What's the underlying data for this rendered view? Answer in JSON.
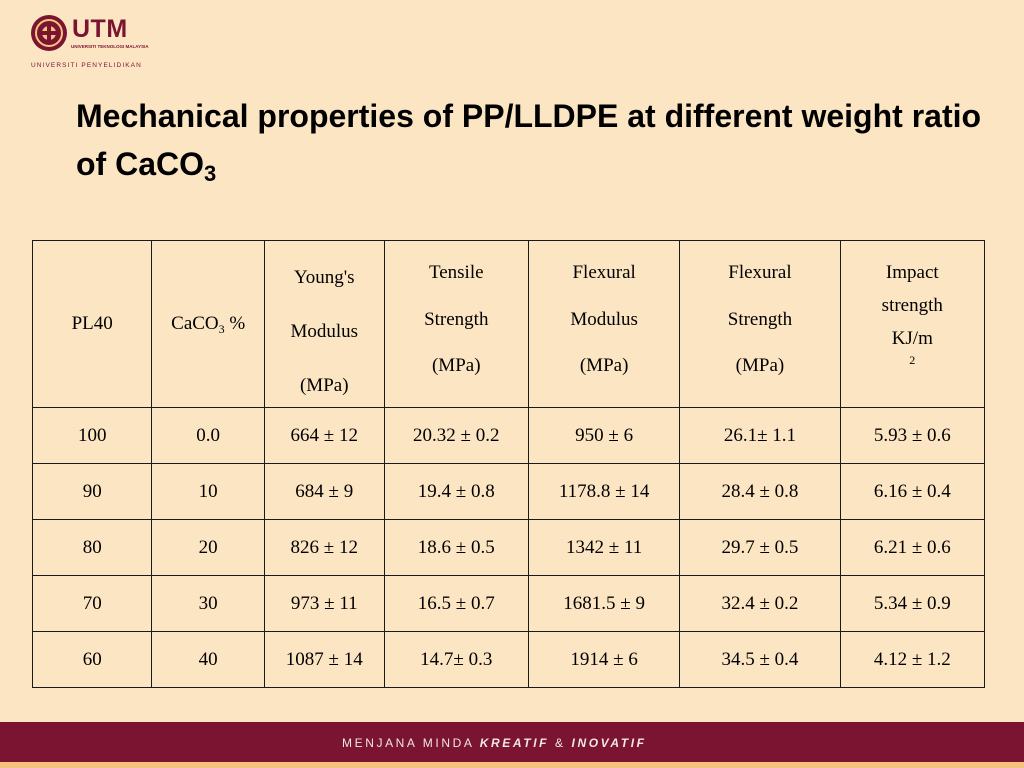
{
  "logo": {
    "brand": "UTM",
    "subtext": "UNIVERSITI TEKNOLOGI MALAYSIA",
    "tagline": "UNIVERSITI PENYELIDIKAN"
  },
  "slide": {
    "title_main": "Mechanical properties of PP/LLDPE at different weight ratio of CaCO",
    "title_sub": "3"
  },
  "table": {
    "headers": {
      "pl40": "PL40",
      "caco3_pre": "CaCO",
      "caco3_sub": "3",
      "caco3_post": " %",
      "youngs": [
        "Young's",
        "Modulus",
        "(MPa)"
      ],
      "tensile": [
        "Tensile",
        "Strength",
        "(MPa)"
      ],
      "flex_mod": [
        "Flexural",
        "Modulus",
        "(MPa)"
      ],
      "flex_str": [
        "Flexural",
        "Strength",
        "(MPa)"
      ],
      "impact": [
        "Impact",
        "strength",
        "KJ/m",
        "2"
      ]
    },
    "rows": [
      [
        "100",
        "0.0",
        "664 ± 12",
        "20.32 ± 0.2",
        "950 ±  6",
        "26.1± 1.1",
        "5.93 ± 0.6"
      ],
      [
        "90",
        "10",
        "684 ± 9",
        "19.4 ± 0.8",
        "1178.8 ± 14",
        "28.4 ± 0.8",
        "6.16 ± 0.4"
      ],
      [
        "80",
        "20",
        "826 ± 12",
        "18.6 ± 0.5",
        "1342  ± 11",
        "29.7 ± 0.5",
        "6.21 ± 0.6"
      ],
      [
        "70",
        "30",
        "973 ± 11",
        "16.5 ± 0.7",
        "1681.5 ± 9",
        "32.4 ± 0.2",
        "5.34 ± 0.9"
      ],
      [
        "60",
        "40",
        "1087 ± 14",
        "14.7± 0.3",
        "1914 ± 6",
        "34.5 ± 0.4",
        "4.12 ± 1.2"
      ]
    ]
  },
  "footer": {
    "tagline_a": "MENJANA MINDA ",
    "tagline_b": "KREATIF",
    "tagline_c": " & ",
    "tagline_d": "INOVATIF"
  },
  "colors": {
    "background": "#fce5c3",
    "brand": "#7a1430",
    "footer_stripe": "#f3c47e"
  }
}
